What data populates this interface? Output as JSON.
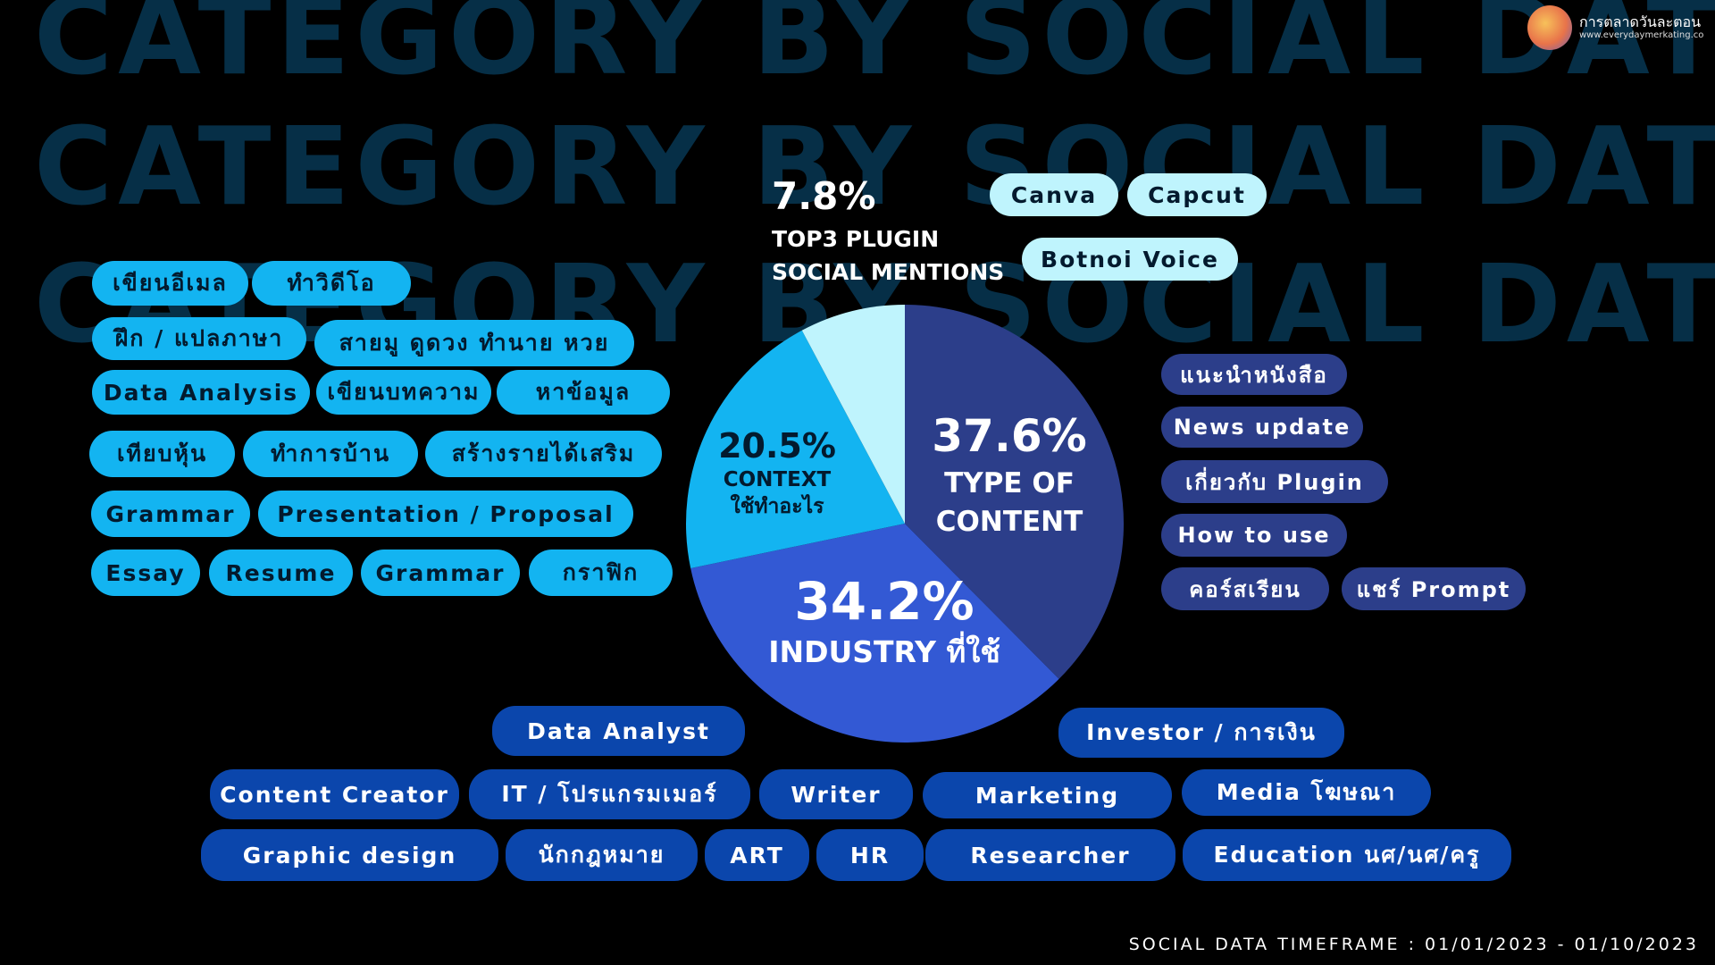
{
  "background_text": [
    "CATEGORY BY SOCIAL DATA",
    "CATEGORY BY SOCIAL DATA",
    "CATEGORY BY SOCIAL DATA"
  ],
  "logo": {
    "name": "การตลาดวันละตอน",
    "url": "www.everydaymerkating.co"
  },
  "chart_data": {
    "type": "pie",
    "slices": [
      {
        "label": "TYPE OF CONTENT",
        "value": 37.6,
        "value_label": "37.6%",
        "color": "#2c3e8a"
      },
      {
        "label": "INDUSTRY ที่ใช้",
        "value": 34.2,
        "value_label": "34.2%",
        "color": "#3359d4"
      },
      {
        "label": "CONTEXT ใช้ทำอะไร",
        "value": 20.5,
        "value_label": "20.5%",
        "color": "#13b4f1"
      },
      {
        "label": "TOP3 PLUGIN SOCIAL MENTIONS",
        "value": 7.8,
        "value_label": "7.8%",
        "color": "#bff4fd"
      }
    ]
  },
  "labels": {
    "type_pct": "37.6%",
    "type_line1": "TYPE OF",
    "type_line2": "CONTENT",
    "industry_pct": "34.2%",
    "industry_name": "INDUSTRY ที่ใช้",
    "context_pct": "20.5%",
    "context_line1": "CONTEXT",
    "context_line2": "ใช้ทำอะไร",
    "plugin_pct": "7.8%",
    "plugin_line1": "TOP3 PLUGIN",
    "plugin_line2": "SOCIAL MENTIONS"
  },
  "context_tags": [
    "เขียนอีเมล",
    "ทำวิดีโอ",
    "ฝึก / แปลภาษา",
    "สายมู ดูดวง ทำนาย หวย",
    "Data Analysis",
    "เขียนบทความ",
    "หาข้อมูล",
    "เทียบหุ้น",
    "ทำการบ้าน",
    "สร้างรายได้เสริม",
    "Grammar",
    "Presentation / Proposal",
    "Essay",
    "Resume",
    "Grammar",
    "กราฟิก"
  ],
  "plugin_tags": [
    "Canva",
    "Capcut",
    "Botnoi Voice"
  ],
  "content_tags": [
    "แนะนำหนังสือ",
    "News update",
    "เกี่ยวกับ Plugin",
    "How to use",
    "คอร์สเรียน",
    "แชร์ Prompt"
  ],
  "industry_tags": [
    "Data Analyst",
    "Investor / การเงิน",
    "Content Creator",
    "IT / โปรแกรมเมอร์",
    "Writer",
    "Marketing",
    "Media โฆษณา",
    "Graphic design",
    "นักกฎหมาย",
    "ART",
    "HR",
    "Researcher",
    "Education นศ/นศ/ครู"
  ],
  "footer": "SOCIAL DATA TIMEFRAME : 01/01/2023 - 01/10/2023"
}
